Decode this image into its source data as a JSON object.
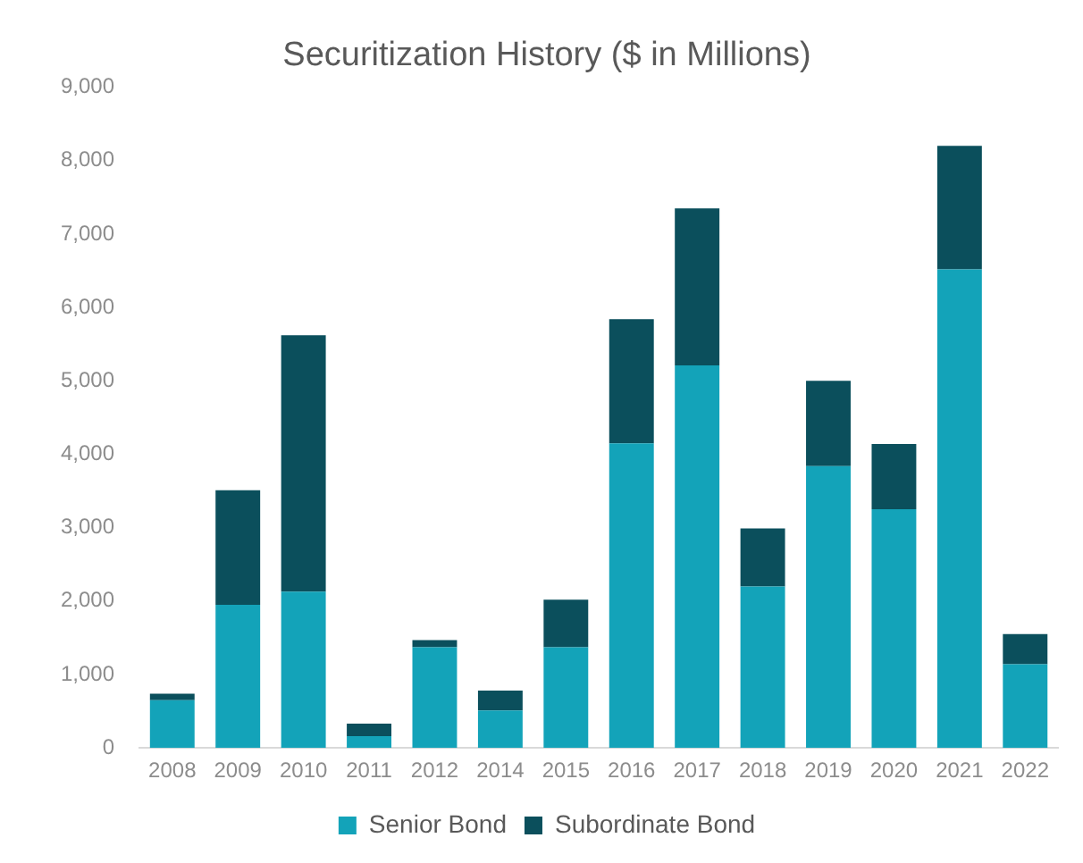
{
  "chart_data": {
    "type": "bar",
    "title": "Securitization History ($ in Millions)",
    "categories": [
      "2008",
      "2009",
      "2010",
      "2011",
      "2012",
      "2014",
      "2015",
      "2016",
      "2017",
      "2018",
      "2019",
      "2020",
      "2021",
      "2022"
    ],
    "series": [
      {
        "name": "Senior Bond",
        "color": "#13a3b9",
        "values": [
          650,
          1950,
          2130,
          160,
          1370,
          510,
          1370,
          4150,
          5210,
          2200,
          3840,
          3250,
          6520,
          1140
        ]
      },
      {
        "name": "Subordinate Bond",
        "color": "#0b4f5c",
        "values": [
          90,
          1560,
          3490,
          170,
          100,
          270,
          650,
          1690,
          2140,
          790,
          1160,
          890,
          1680,
          410
        ]
      }
    ],
    "stacked": true,
    "ylim": [
      0,
      9000
    ],
    "yticks": [
      0,
      {
        "value": 1000,
        "label": "1,000"
      },
      {
        "value": 2000,
        "label": "2,000"
      },
      {
        "value": 3000,
        "label": "3,000"
      },
      {
        "value": 4000,
        "label": "4,000"
      },
      {
        "value": 5000,
        "label": "5,000"
      },
      {
        "value": 6000,
        "label": "6,000"
      },
      {
        "value": 7000,
        "label": "7,000"
      },
      {
        "value": 8000,
        "label": "8,000"
      },
      {
        "value": 9000,
        "label": "9,000"
      }
    ],
    "grid": false,
    "legend": "bottom"
  }
}
